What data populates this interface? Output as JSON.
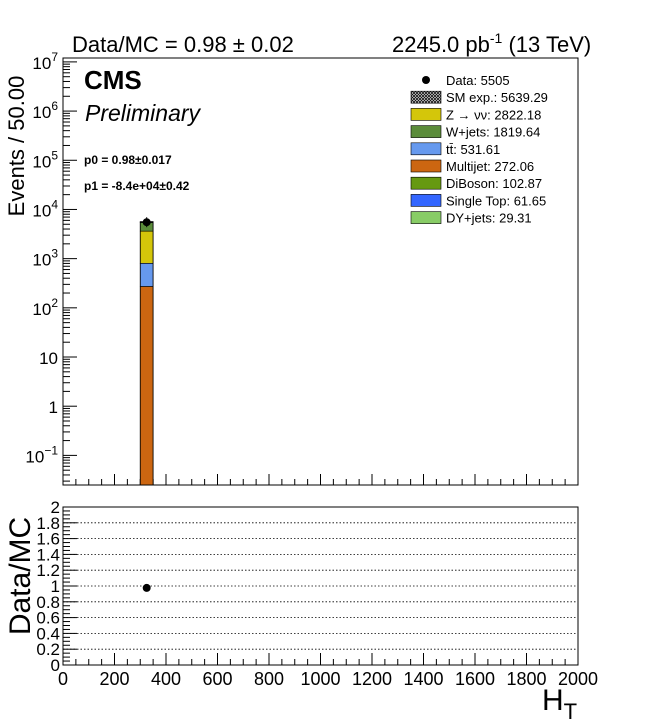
{
  "header": {
    "left": "Data/MC = 0.98 ± 0.02",
    "lumi_value": "2245.0 pb",
    "lumi_exp": "-1",
    "energy": "(13 TeV)"
  },
  "labels": {
    "cms": "CMS",
    "preliminary": "Preliminary",
    "p0": "p0 = 0.98±0.017",
    "p1": "p1 = -8.4e+04±0.42"
  },
  "chart_data": [
    {
      "type": "bar",
      "stacked": true,
      "log_y": true,
      "ylabel": "Events / 50.00",
      "xlim": [
        0,
        2000
      ],
      "ylim": [
        0.025,
        12000000
      ],
      "bin": [
        300,
        350
      ],
      "y_ticks": [
        {
          "v": 0.1,
          "base": "10",
          "exp": "−1"
        },
        {
          "v": 1,
          "base": "1",
          "exp": ""
        },
        {
          "v": 10,
          "base": "10",
          "exp": ""
        },
        {
          "v": 100,
          "base": "10",
          "exp": "2"
        },
        {
          "v": 1000,
          "base": "10",
          "exp": "3"
        },
        {
          "v": 10000,
          "base": "10",
          "exp": "4"
        },
        {
          "v": 100000,
          "base": "10",
          "exp": "5"
        },
        {
          "v": 1000000,
          "base": "10",
          "exp": "6"
        },
        {
          "v": 10000000,
          "base": "10",
          "exp": "7"
        }
      ],
      "data_point": {
        "x": 325,
        "y": 5505
      },
      "legend_position": "top-right",
      "legend": [
        {
          "label": "Data: 5505",
          "kind": "marker"
        },
        {
          "label": "SM exp.: 5639.29",
          "kind": "hatch"
        },
        {
          "label": "Z → νν: 2822.18",
          "color": "#d4c60a"
        },
        {
          "label": "W+jets: 1819.64",
          "color": "#5b8c3a"
        },
        {
          "label": "tt̄: 531.61",
          "color": "#6699ee"
        },
        {
          "label": "Multijet: 272.06",
          "color": "#cc6611"
        },
        {
          "label": "DiBoson: 102.87",
          "color": "#669911"
        },
        {
          "label": "Single Top: 61.65",
          "color": "#3366ff"
        },
        {
          "label": "DY+jets: 29.31",
          "color": "#88cc66"
        }
      ],
      "stack": [
        {
          "name": "Multijet",
          "value": 272.06,
          "color": "#cc6611"
        },
        {
          "name": "tt̄",
          "value": 531.61,
          "color": "#6699ee"
        },
        {
          "name": "Z → νν",
          "value": 2822.18,
          "color": "#d4c60a"
        },
        {
          "name": "W+jets",
          "value": 1819.64,
          "color": "#5b8c3a"
        },
        {
          "name": "DiBoson",
          "value": 102.87,
          "color": "#669911"
        },
        {
          "name": "Single Top",
          "value": 61.65,
          "color": "#3366ff"
        },
        {
          "name": "DY+jets",
          "value": 29.31,
          "color": "#88cc66"
        }
      ]
    },
    {
      "type": "scatter",
      "ylabel": "Data/MC",
      "xlabel_base": "H",
      "xlabel_sub": "T",
      "xlim": [
        0,
        2000
      ],
      "ylim": [
        0,
        2
      ],
      "x_ticks": [
        "0",
        "200",
        "400",
        "600",
        "800",
        "1000",
        "1200",
        "1400",
        "1600",
        "1800",
        "2000"
      ],
      "y_ticks": [
        "0",
        "0.2",
        "0.4",
        "0.6",
        "0.8",
        "1",
        "1.2",
        "1.4",
        "1.6",
        "1.8",
        "2"
      ],
      "grid": true,
      "points": [
        {
          "x": 325,
          "y": 0.976,
          "err": 0.02
        }
      ]
    }
  ]
}
